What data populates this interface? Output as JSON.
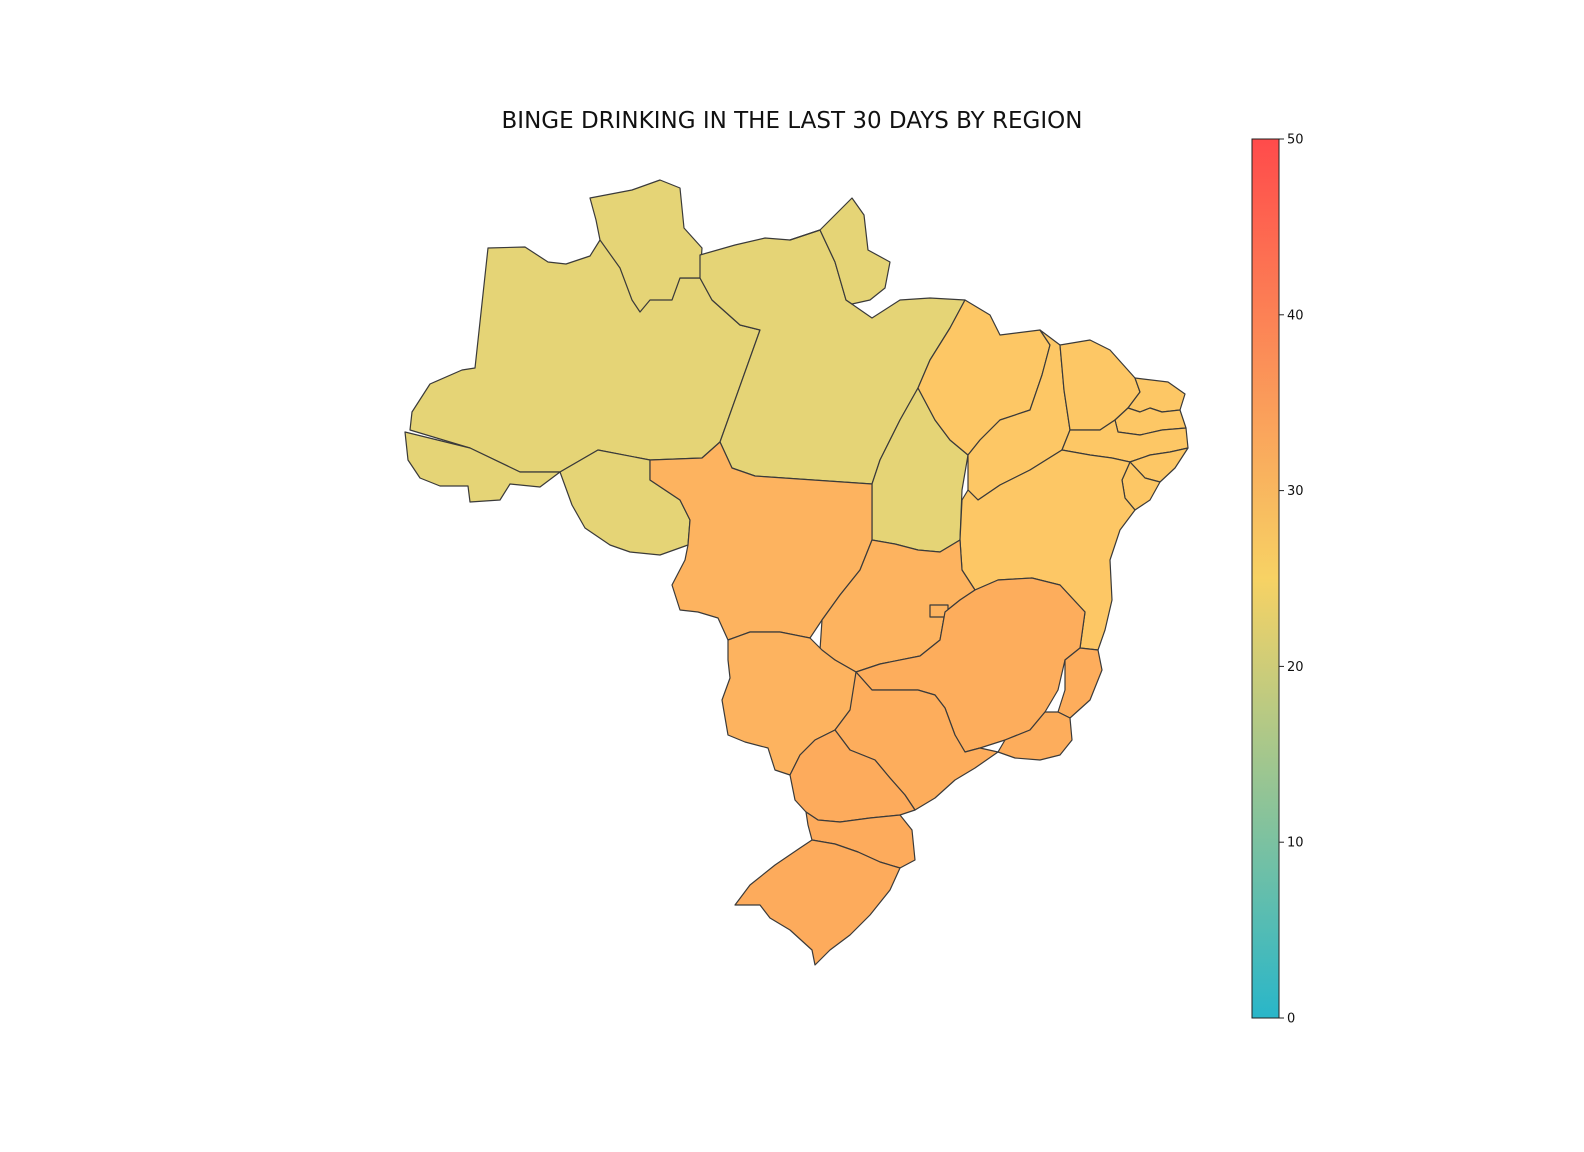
{
  "title": "BINGE DRINKING IN THE LAST 30 DAYS BY REGION",
  "colorbar": {
    "min": 0,
    "max": 50,
    "ticks": [
      "0",
      "10",
      "20",
      "30",
      "40",
      "50"
    ],
    "stops": [
      "#29b6c9",
      "#f7d264",
      "#ff4b4b"
    ]
  },
  "chart_data": {
    "type": "choropleth",
    "title": "BINGE DRINKING IN THE LAST 30 DAYS BY REGION",
    "value_range": [
      0,
      50
    ],
    "regions": [
      {
        "name": "Norte",
        "value": 22,
        "color": "#e5d476"
      },
      {
        "name": "Nordeste",
        "value": 28,
        "color": "#fdc765"
      },
      {
        "name": "Centro-Oeste",
        "value": 32,
        "color": "#fdb35f"
      },
      {
        "name": "Sudeste",
        "value": 33,
        "color": "#fdad5c"
      },
      {
        "name": "Sul",
        "value": 33,
        "color": "#fdab5c"
      }
    ]
  }
}
